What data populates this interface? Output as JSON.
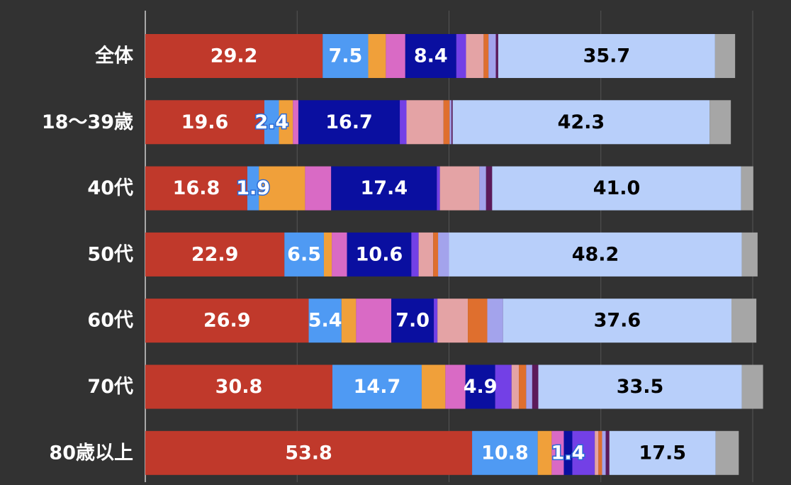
{
  "chart_data": {
    "type": "bar",
    "orientation": "horizontal",
    "stacked": true,
    "title": "",
    "xlabel": "",
    "ylabel": "",
    "xlim": [
      0,
      100
    ],
    "grid": true,
    "legend": "none",
    "categories": [
      "全体",
      "18〜39歳",
      "40代",
      "50代",
      "60代",
      "70代",
      "80歳以上"
    ],
    "series": [
      {
        "color": "#c0392b",
        "values": [
          29.2,
          19.6,
          16.8,
          22.9,
          26.9,
          30.8,
          53.8
        ],
        "labels": [
          "29.2",
          "19.6",
          "16.8",
          "22.9",
          "26.9",
          "30.8",
          "53.8"
        ],
        "label_color": "#ffffff"
      },
      {
        "color": "#4f9af3",
        "values": [
          7.5,
          2.4,
          1.9,
          6.5,
          5.4,
          14.7,
          10.8
        ],
        "labels": [
          "7.5",
          "2.4",
          "1.9",
          "6.5",
          "5.4",
          "14.7",
          "10.8"
        ],
        "label_color": "#ffffff"
      },
      {
        "color": "#f0a03a",
        "values": [
          2.9,
          2.3,
          7.6,
          1.3,
          2.4,
          3.9,
          2.3
        ],
        "labels": [],
        "label_color": "#ffffff"
      },
      {
        "color": "#d96ac5",
        "values": [
          3.2,
          0.9,
          4.3,
          2.5,
          5.8,
          3.3,
          2.0
        ],
        "labels": [],
        "label_color": "#ffffff"
      },
      {
        "color": "#0a0fa0",
        "values": [
          8.4,
          16.7,
          17.4,
          10.6,
          7.0,
          4.9,
          1.4
        ],
        "labels": [
          "8.4",
          "16.7",
          "17.4",
          "10.6",
          "7.0",
          "4.9",
          "1.4"
        ],
        "label_color": "#ffffff"
      },
      {
        "color": "#7340e6",
        "values": [
          1.6,
          1.1,
          0.5,
          1.2,
          0.6,
          2.7,
          3.7
        ],
        "labels": [],
        "label_color": "#ffffff"
      },
      {
        "color": "#e4a3a5",
        "values": [
          2.9,
          6.1,
          6.5,
          2.4,
          5.0,
          1.2,
          0.6
        ],
        "labels": [],
        "label_color": "#ffffff"
      },
      {
        "color": "#df6f2e",
        "values": [
          0.8,
          1.0,
          0.0,
          0.8,
          3.2,
          1.2,
          0.6
        ],
        "labels": [],
        "label_color": "#ffffff"
      },
      {
        "color": "#a3a3ec",
        "values": [
          1.2,
          0.3,
          1.1,
          1.8,
          2.6,
          1.0,
          0.6
        ],
        "labels": [],
        "label_color": "#ffffff"
      },
      {
        "color": "#5c1a5a",
        "values": [
          0.4,
          0.2,
          1.0,
          0.0,
          0.0,
          1.0,
          0.6
        ],
        "labels": [],
        "label_color": "#ffffff"
      },
      {
        "color": "#b8cffa",
        "values": [
          35.7,
          42.3,
          41.0,
          48.2,
          37.6,
          33.5,
          17.5
        ],
        "labels": [
          "35.7",
          "42.3",
          "41.0",
          "48.2",
          "37.6",
          "33.5",
          "17.5"
        ],
        "label_color": "#000000"
      },
      {
        "color": "#a6a6a6",
        "values": [
          3.3,
          3.5,
          2.0,
          2.6,
          4.1,
          3.5,
          3.8
        ],
        "labels": [],
        "label_color": "#ffffff"
      }
    ],
    "text_color": "#ffffff",
    "background": "#323232",
    "gridline_color": "#555555"
  }
}
